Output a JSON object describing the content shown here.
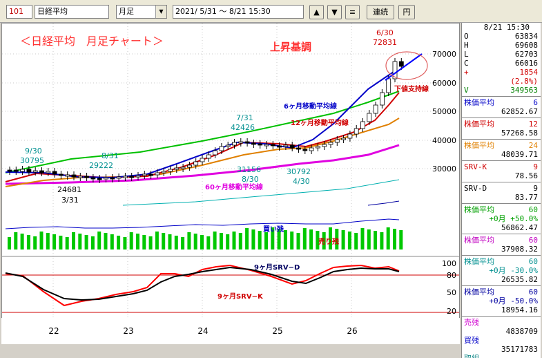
{
  "toolbar": {
    "code": "101",
    "name": "日経平均",
    "period": "月足",
    "range": "2021/ 5/31 ～  8/21 15:30",
    "up_icon": "triangle-up-icon",
    "down_icon": "triangle-down-icon",
    "menu_icon": "menu-icon",
    "continuous_label": "連続",
    "yen_label": "円"
  },
  "annotations": {
    "title": "＜日経平均　月足チャート＞",
    "trend": "上昇基調",
    "ma6": "6ヶ月移動平均線",
    "ma12": "12ヶ月移動平均線",
    "ma60": "60ヶ月移動平均線",
    "support": "下値支持線",
    "buy": "買い残",
    "sell": "売り残",
    "srv_d": "9ヶ月SRV−D",
    "srv_k": "9ヶ月SRV−K",
    "hl_9_30": "9/30",
    "hl_30795": "30795",
    "hl_8_31": "8/31",
    "hl_29222": "29222",
    "hl_24681": "24681",
    "hl_3_31": "3/31",
    "hl_7_31": "7/31",
    "hl_42426": "42426",
    "hl_31156": "31156",
    "hl_8_30": "8/30",
    "hl_30792": "30792",
    "hl_4_30": "4/30",
    "hl_6_30": "6/30",
    "hl_72831": "72831"
  },
  "axis": {
    "price_ticks": [
      "70000",
      "60000",
      "50000",
      "40000",
      "30000"
    ],
    "osc_ticks": [
      "100",
      "80",
      "50",
      "20",
      "0"
    ],
    "years": [
      "22",
      "23",
      "24",
      "25",
      "26"
    ]
  },
  "panel": {
    "time": "8/21 15:30",
    "ohlc": [
      {
        "k": "O",
        "v": "63834",
        "c": "#000000"
      },
      {
        "k": "H",
        "v": "69608",
        "c": "#000000"
      },
      {
        "k": "L",
        "v": "62703",
        "c": "#000000"
      },
      {
        "k": "C",
        "v": "66016",
        "c": "#000000"
      },
      {
        "k": "+",
        "v": "1854",
        "c": "#d00000"
      },
      {
        "k": "",
        "v": "(2.8%)",
        "c": "#d00000"
      },
      {
        "k": "V",
        "v": "349563",
        "c": "#008000"
      }
    ],
    "indicators": [
      {
        "label": "株価平均",
        "num": "6",
        "value": "62852.67",
        "color": "#0000c8"
      },
      {
        "label": "株価平均",
        "num": "12",
        "value": "57268.58",
        "color": "#d00000"
      },
      {
        "label": "株価平均",
        "num": "24",
        "value": "48039.71",
        "color": "#e08000"
      },
      {
        "label": "SRV-K",
        "num": "9",
        "value": "78.56",
        "color": "#d00000"
      },
      {
        "label": "SRV-D",
        "num": "9",
        "value": "83.77",
        "color": "#000000"
      },
      {
        "label": "株価平均",
        "num": "60",
        "value": "56862.47",
        "sub": "+0月 +50.0%",
        "color": "#00a000"
      },
      {
        "label": "株価平均",
        "num": "60",
        "value": "37908.32",
        "color": "#c000c0"
      },
      {
        "label": "株価平均",
        "num": "60",
        "value": "26535.82",
        "sub": "+0月 -30.0%",
        "color": "#009090"
      },
      {
        "label": "株価平均",
        "num": "60",
        "value": "18954.16",
        "sub": "+0月 -50.0%",
        "color": "#0000a0"
      }
    ],
    "sell_label": "売残",
    "sell_value": "4838709",
    "buy_label": "買残",
    "buy_value": "35171783",
    "ratio_label": "取組"
  },
  "colors": {
    "ma6": "#0000c8",
    "ma12": "#d00000",
    "ma24": "#e08000",
    "ma60": "#00c000",
    "env_magenta": "#e000e0",
    "env_cyan": "#00b0b0",
    "buy_bar": "#00c800",
    "sell_line": "#0000c8"
  }
}
